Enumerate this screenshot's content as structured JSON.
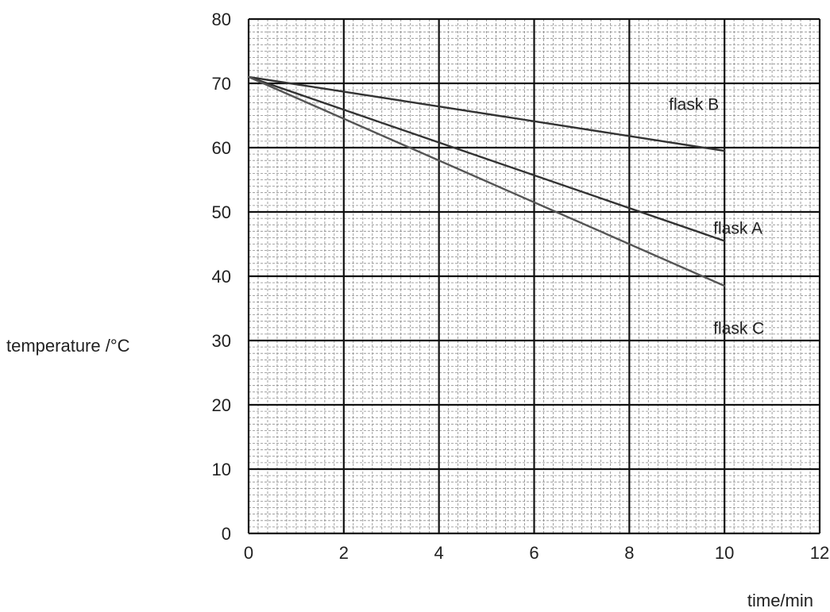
{
  "chart_data": {
    "type": "line",
    "title": "",
    "xlabel": "time/min",
    "ylabel": "temperature /°C",
    "xlim": [
      0,
      12
    ],
    "ylim": [
      0,
      80
    ],
    "x_ticks": [
      "0",
      "2",
      "4",
      "6",
      "8",
      "10",
      "12"
    ],
    "y_ticks": [
      "0",
      "10",
      "20",
      "30",
      "40",
      "50",
      "60",
      "70",
      "80"
    ],
    "grid": true,
    "series": [
      {
        "name": "flask A",
        "x": [
          0,
          10
        ],
        "y": [
          71,
          45.5
        ],
        "color": "#333333"
      },
      {
        "name": "flask B",
        "x": [
          0,
          10
        ],
        "y": [
          71,
          59.5
        ],
        "color": "#333333"
      },
      {
        "name": "flask C",
        "x": [
          0,
          10
        ],
        "y": [
          71,
          38.5
        ],
        "color": "#555555"
      }
    ]
  }
}
